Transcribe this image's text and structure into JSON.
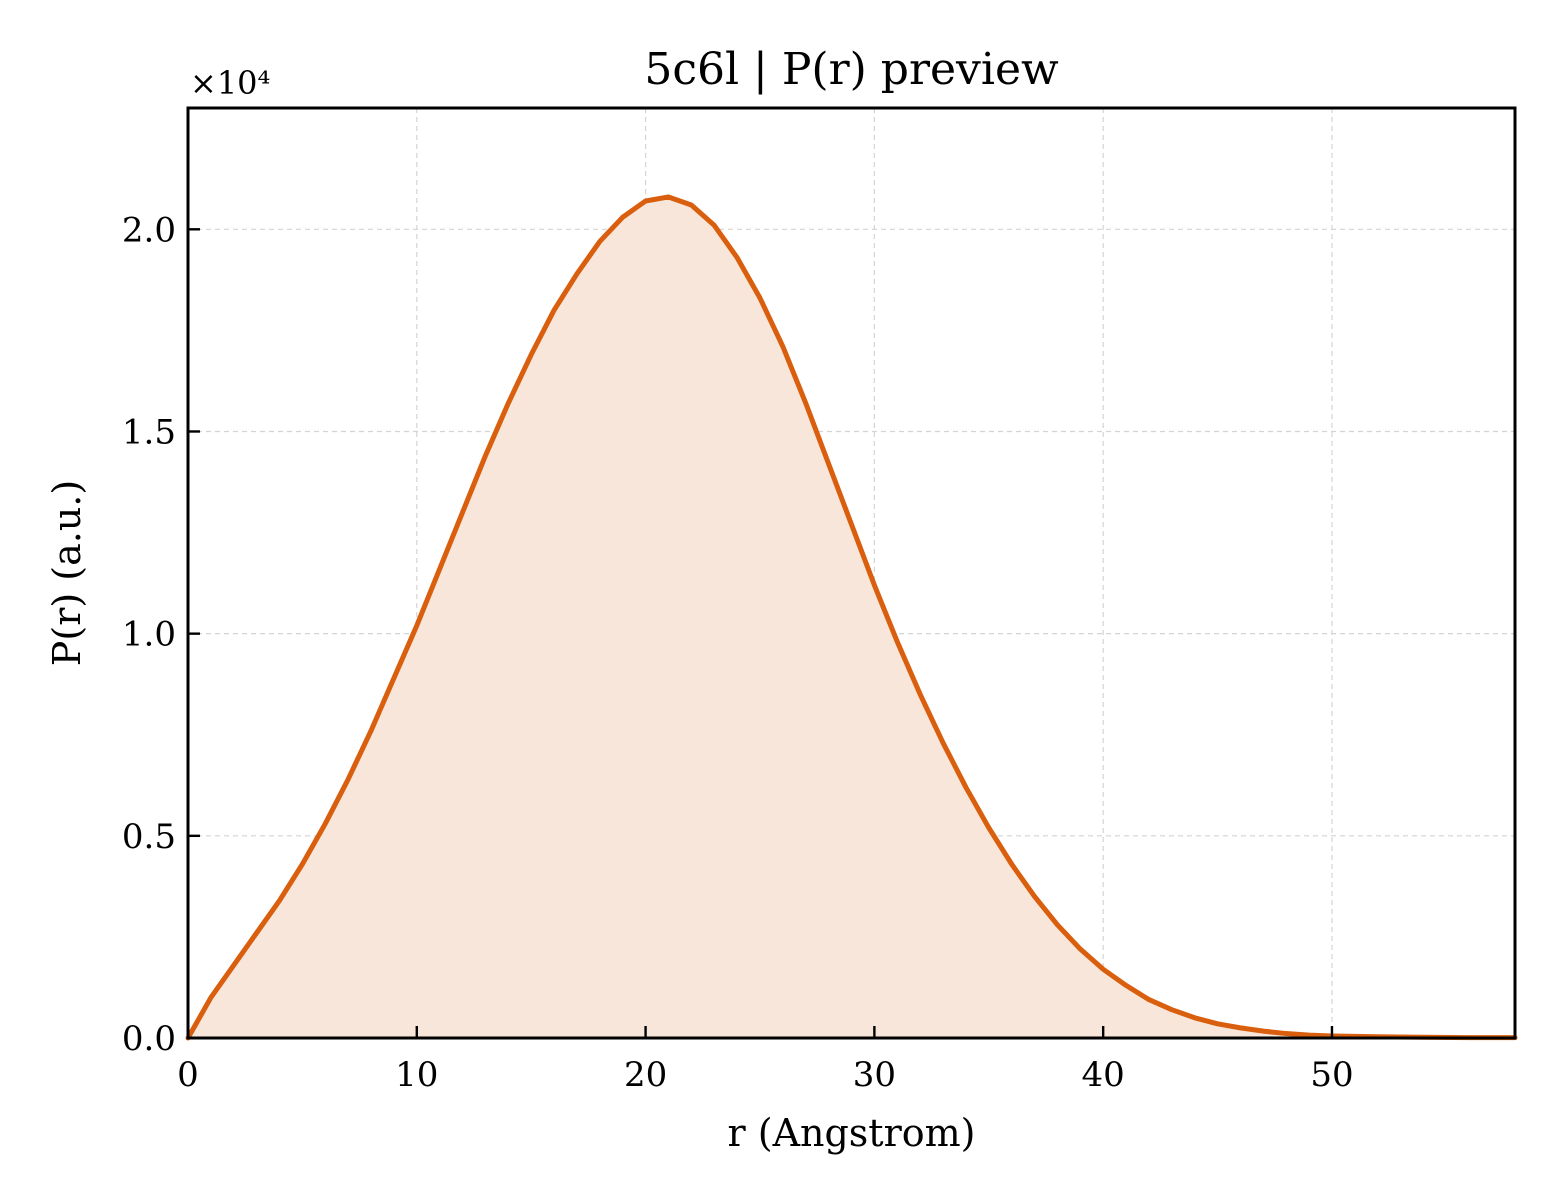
{
  "chart_data": {
    "type": "area",
    "title": "5c6l | P(r) preview",
    "xlabel": "r (Angstrom)",
    "ylabel": "P(r) (a.u.)",
    "y_multiplier_label": "×10⁴",
    "xlim": [
      0,
      58
    ],
    "ylim": [
      0,
      2.3
    ],
    "y_units_scale": 10000,
    "xticks": [
      0,
      10,
      20,
      30,
      40,
      50
    ],
    "xtick_labels": [
      "0",
      "10",
      "20",
      "30",
      "40",
      "50"
    ],
    "yticks": [
      0.0,
      0.5,
      1.0,
      1.5,
      2.0
    ],
    "ytick_labels": [
      "0.0",
      "0.5",
      "1.0",
      "1.5",
      "2.0"
    ],
    "grid": true,
    "line_color": "#d95f0e",
    "fill_color": "#f8e6da",
    "series": [
      {
        "x": [
          0,
          1,
          2,
          3,
          4,
          5,
          6,
          7,
          8,
          9,
          10,
          11,
          12,
          13,
          14,
          15,
          16,
          17,
          18,
          19,
          20,
          21,
          22,
          23,
          24,
          25,
          26,
          27,
          28,
          29,
          30,
          31,
          32,
          33,
          34,
          35,
          36,
          37,
          38,
          39,
          40,
          41,
          42,
          43,
          44,
          45,
          46,
          47,
          48,
          49,
          50,
          52,
          54,
          56,
          58
        ],
        "y": [
          0.0,
          0.1,
          0.18,
          0.26,
          0.34,
          0.43,
          0.53,
          0.64,
          0.76,
          0.89,
          1.02,
          1.16,
          1.3,
          1.44,
          1.57,
          1.69,
          1.8,
          1.89,
          1.97,
          2.03,
          2.07,
          2.08,
          2.06,
          2.01,
          1.93,
          1.83,
          1.71,
          1.57,
          1.42,
          1.27,
          1.12,
          0.98,
          0.85,
          0.73,
          0.62,
          0.52,
          0.43,
          0.35,
          0.28,
          0.22,
          0.17,
          0.13,
          0.095,
          0.07,
          0.05,
          0.035,
          0.025,
          0.017,
          0.011,
          0.007,
          0.005,
          0.003,
          0.002,
          0.001,
          0.001
        ]
      }
    ]
  }
}
